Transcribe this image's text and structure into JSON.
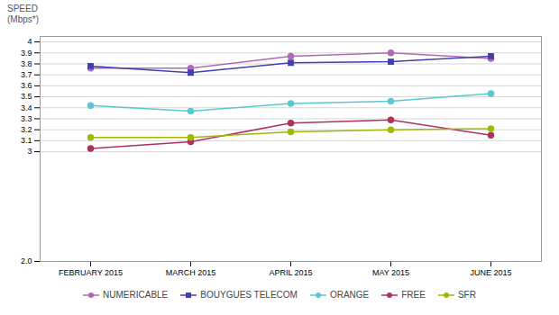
{
  "chart_data": {
    "type": "line",
    "ylabel": [
      "SPEED",
      "(Mbps*)"
    ],
    "categories": [
      "FEBRUARY 2015",
      "MARCH 2015",
      "APRIL 2015",
      "MAY 2015",
      "JUNE 2015"
    ],
    "series": [
      {
        "name": "NUMERICABLE",
        "color": "#b06ab3",
        "marker": "circle",
        "values": [
          3.76,
          3.76,
          3.87,
          3.9,
          3.85
        ]
      },
      {
        "name": "BOUYGUES TELECOM",
        "color": "#4040b0",
        "marker": "square",
        "values": [
          3.78,
          3.72,
          3.81,
          3.82,
          3.87
        ]
      },
      {
        "name": "ORANGE",
        "color": "#5bc8d0",
        "marker": "circle",
        "values": [
          3.42,
          3.37,
          3.44,
          3.46,
          3.53
        ]
      },
      {
        "name": "FREE",
        "color": "#b03060",
        "marker": "circle",
        "values": [
          3.03,
          3.09,
          3.26,
          3.29,
          3.15
        ]
      },
      {
        "name": "SFR",
        "color": "#a0b800",
        "marker": "circle",
        "values": [
          3.13,
          3.13,
          3.18,
          3.2,
          3.21
        ]
      }
    ],
    "ylim": [
      2.0,
      4.05
    ],
    "yticks": [
      {
        "value": 2.0,
        "label": "2.0"
      },
      3,
      3.1,
      3.2,
      3.3,
      3.4,
      3.5,
      3.6,
      3.7,
      3.8,
      3.9,
      4
    ],
    "grid": true,
    "legend": "bottom"
  }
}
